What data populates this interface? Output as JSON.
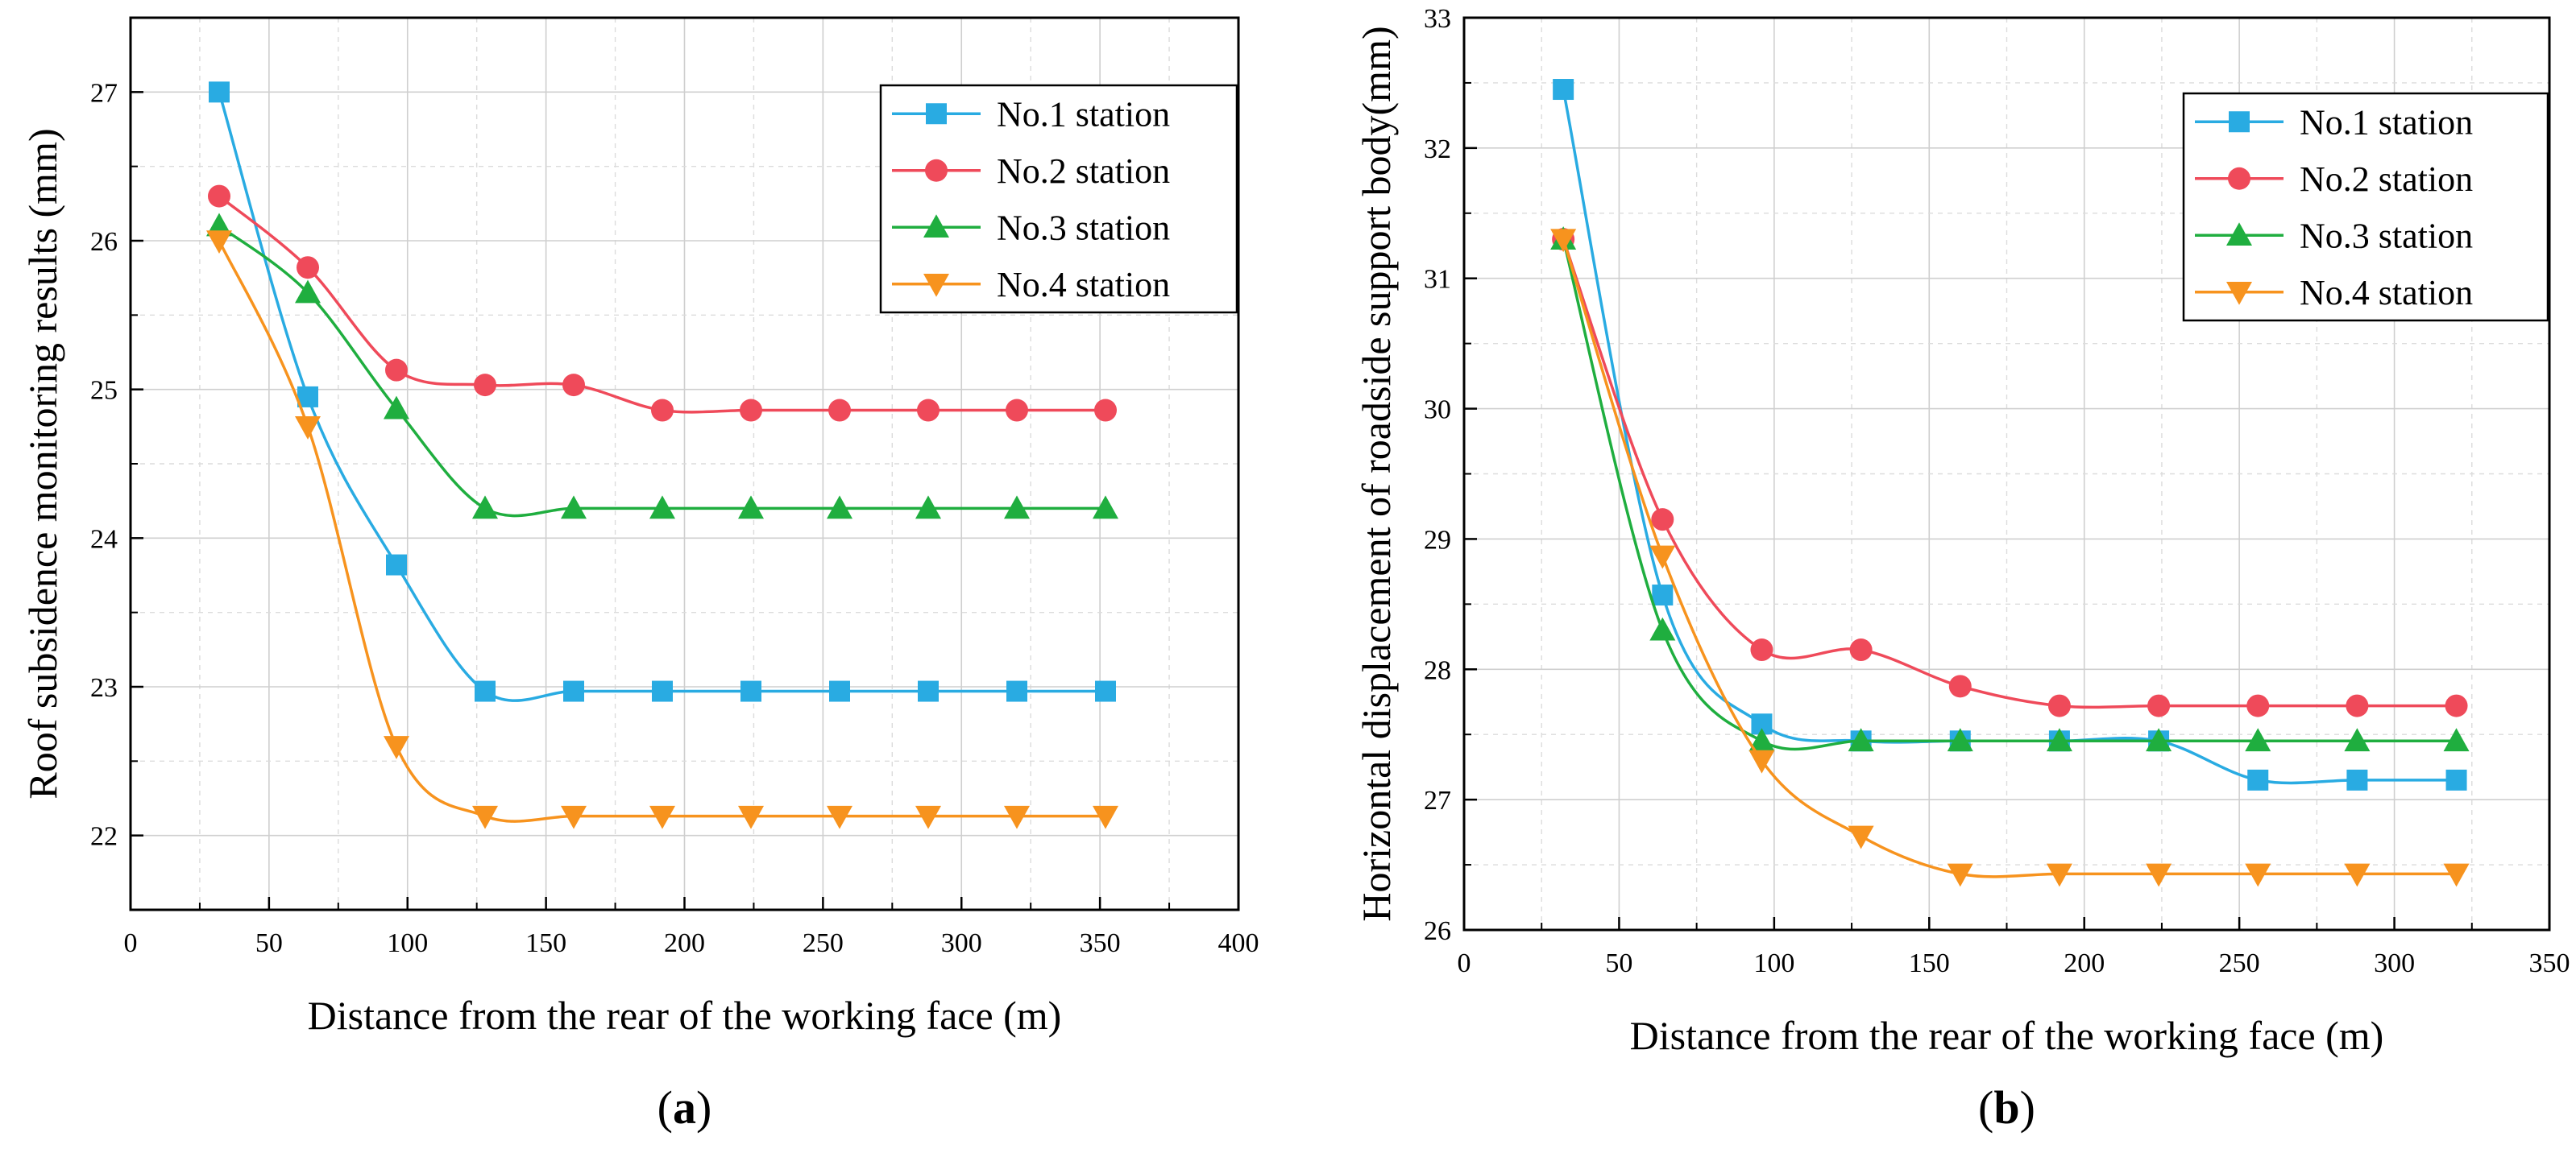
{
  "colors": {
    "No.1": "#29abe2",
    "No.2": "#ef4a5a",
    "No.3": "#1fae3f",
    "No.4": "#f7931e"
  },
  "chart_data": [
    {
      "type": "line",
      "panel_label": "a",
      "xlabel": "Distance from the rear of the working face (m)",
      "ylabel": "Roof subsidence monitoring results (mm)",
      "xlim": [
        0,
        400
      ],
      "ylim": [
        21.5,
        27.5
      ],
      "xticks": [
        0,
        50,
        100,
        150,
        200,
        250,
        300,
        350,
        400
      ],
      "xtick_labels": [
        "0",
        "50",
        "100",
        "150",
        "200",
        "250",
        "300",
        "350",
        "400"
      ],
      "yticks": [
        22,
        23,
        24,
        25,
        26,
        27
      ],
      "ytick_labels": [
        "22",
        "23",
        "24",
        "25",
        "26",
        "27"
      ],
      "grid": true,
      "legend_position": "top-right",
      "x": [
        32,
        64,
        96,
        128,
        160,
        192,
        224,
        256,
        288,
        320,
        352
      ],
      "series": [
        {
          "name": "No.1 station",
          "color_key": "No.1",
          "marker": "square",
          "values": [
            27.0,
            24.95,
            23.82,
            22.97,
            22.97,
            22.97,
            22.97,
            22.97,
            22.97,
            22.97,
            22.97
          ]
        },
        {
          "name": "No.2 station",
          "color_key": "No.2",
          "marker": "circle",
          "values": [
            26.3,
            25.82,
            25.13,
            25.03,
            25.03,
            24.86,
            24.86,
            24.86,
            24.86,
            24.86,
            24.86
          ]
        },
        {
          "name": "No.3 station",
          "color_key": "No.3",
          "marker": "triangle-up",
          "values": [
            26.1,
            25.65,
            24.87,
            24.2,
            24.2,
            24.2,
            24.2,
            24.2,
            24.2,
            24.2,
            24.2
          ]
        },
        {
          "name": "No.4 station",
          "color_key": "No.4",
          "marker": "triangle-down",
          "values": [
            26.0,
            24.75,
            22.6,
            22.13,
            22.13,
            22.13,
            22.13,
            22.13,
            22.13,
            22.13,
            22.13
          ]
        }
      ]
    },
    {
      "type": "line",
      "panel_label": "b",
      "xlabel": "Distance from the rear of the working face (m)",
      "ylabel": "Horizontal displacement of roadside support body(mm)",
      "xlim": [
        0,
        350
      ],
      "ylim": [
        26,
        33
      ],
      "xticks": [
        0,
        50,
        100,
        150,
        200,
        250,
        300,
        350
      ],
      "xtick_labels": [
        "0",
        "50",
        "100",
        "150",
        "200",
        "250",
        "300",
        "350"
      ],
      "yticks": [
        26,
        27,
        28,
        29,
        30,
        31,
        32,
        33
      ],
      "ytick_labels": [
        "26",
        "27",
        "28",
        "29",
        "30",
        "31",
        "32",
        "33"
      ],
      "grid": true,
      "legend_position": "top-right",
      "x": [
        32,
        64,
        96,
        128,
        160,
        192,
        224,
        256,
        288,
        320
      ],
      "series": [
        {
          "name": "No.1 station",
          "color_key": "No.1",
          "marker": "square",
          "values": [
            32.45,
            28.57,
            27.58,
            27.45,
            27.45,
            27.45,
            27.45,
            27.15,
            27.15,
            27.15
          ]
        },
        {
          "name": "No.2 station",
          "color_key": "No.2",
          "marker": "circle",
          "values": [
            31.3,
            29.15,
            28.15,
            28.15,
            27.87,
            27.72,
            27.72,
            27.72,
            27.72,
            27.72
          ]
        },
        {
          "name": "No.3 station",
          "color_key": "No.3",
          "marker": "triangle-up",
          "values": [
            31.3,
            28.3,
            27.45,
            27.45,
            27.45,
            27.45,
            27.45,
            27.45,
            27.45,
            27.45
          ]
        },
        {
          "name": "No.4 station",
          "color_key": "No.4",
          "marker": "triangle-down",
          "values": [
            31.3,
            28.87,
            27.3,
            26.72,
            26.43,
            26.43,
            26.43,
            26.43,
            26.43,
            26.43
          ]
        }
      ]
    }
  ]
}
